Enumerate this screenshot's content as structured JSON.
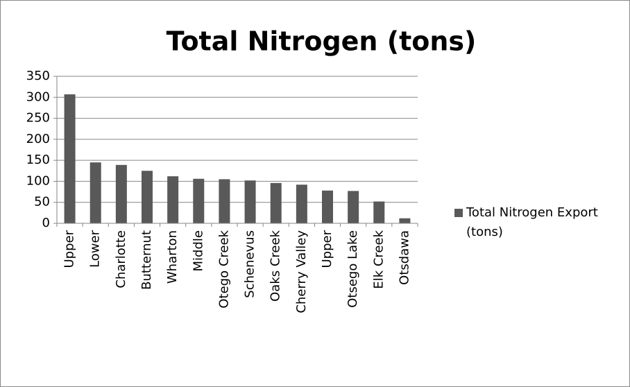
{
  "chart_data": {
    "type": "bar",
    "title": "Total Nitrogen (tons)",
    "categories": [
      "Upper",
      "Lower",
      "Charlotte",
      "Butternut",
      "Wharton",
      "Middle",
      "Otego Creek",
      "Schenevus",
      "Oaks Creek",
      "Cherry Valley",
      "Upper",
      "Otsego Lake",
      "Elk Creek",
      "Otsdawa"
    ],
    "series": [
      {
        "name": "Total Nitrogen Export (tons)",
        "color": "#595959",
        "values": [
          307,
          145,
          139,
          125,
          112,
          106,
          105,
          102,
          96,
          92,
          78,
          77,
          52,
          12
        ]
      }
    ],
    "ylim": [
      0,
      350
    ],
    "yticks": [
      0,
      50,
      100,
      150,
      200,
      250,
      300,
      350
    ],
    "grid": true,
    "legend": "right"
  }
}
